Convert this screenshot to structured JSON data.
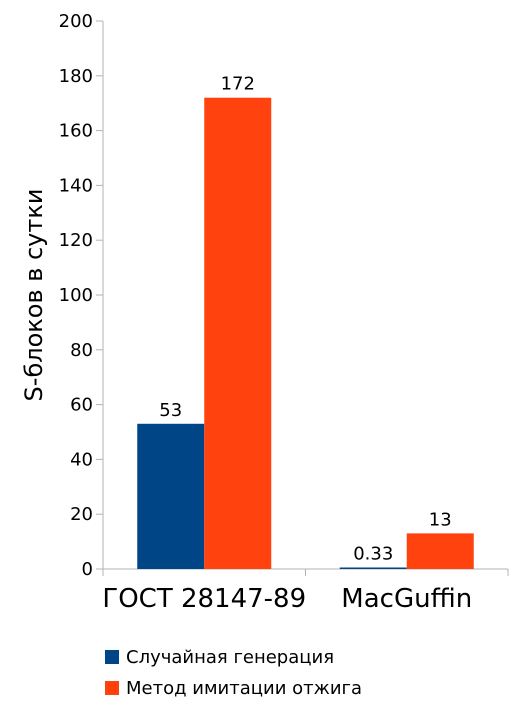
{
  "chart_data": {
    "type": "bar",
    "categories": [
      "ГОСТ 28147-89",
      "MacGuffin"
    ],
    "series": [
      {
        "name": "Случайная генерация",
        "values": [
          53,
          0.33
        ],
        "labels": [
          "53",
          "0.33"
        ],
        "color": "#004586"
      },
      {
        "name": "Метод имитации отжига",
        "values": [
          172,
          13
        ],
        "labels": [
          "172",
          "13"
        ],
        "color": "#ff420e"
      }
    ],
    "ylabel": "S-блоков в сутки",
    "xlabel": "",
    "title": "",
    "ylim": [
      0,
      200
    ],
    "yticks": [
      0,
      20,
      40,
      60,
      80,
      100,
      120,
      140,
      160,
      180,
      200
    ],
    "grid": false,
    "legend_position": "bottom"
  }
}
